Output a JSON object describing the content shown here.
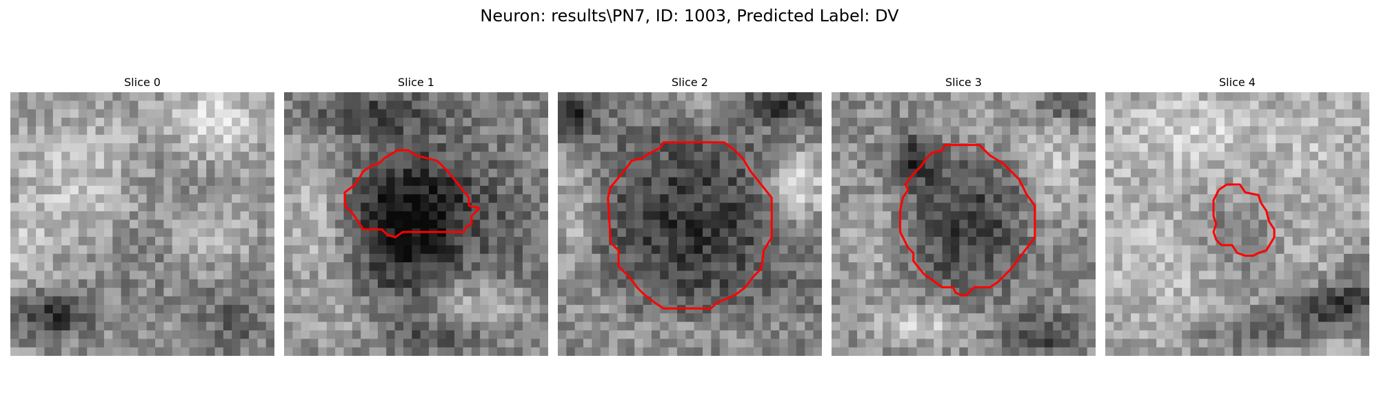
{
  "figure": {
    "suptitle": "Neuron: results\\PN7, ID: 1003, Predicted Label: DV"
  },
  "slices": [
    {
      "title": "Slice 0",
      "has_contour": false
    },
    {
      "title": "Slice 1",
      "has_contour": true
    },
    {
      "title": "Slice 2",
      "has_contour": true
    },
    {
      "title": "Slice 3",
      "has_contour": true
    },
    {
      "title": "Slice 4",
      "has_contour": true
    }
  ],
  "colors": {
    "contour": "#ff0000",
    "background": "#ffffff",
    "colormap": "gray"
  }
}
